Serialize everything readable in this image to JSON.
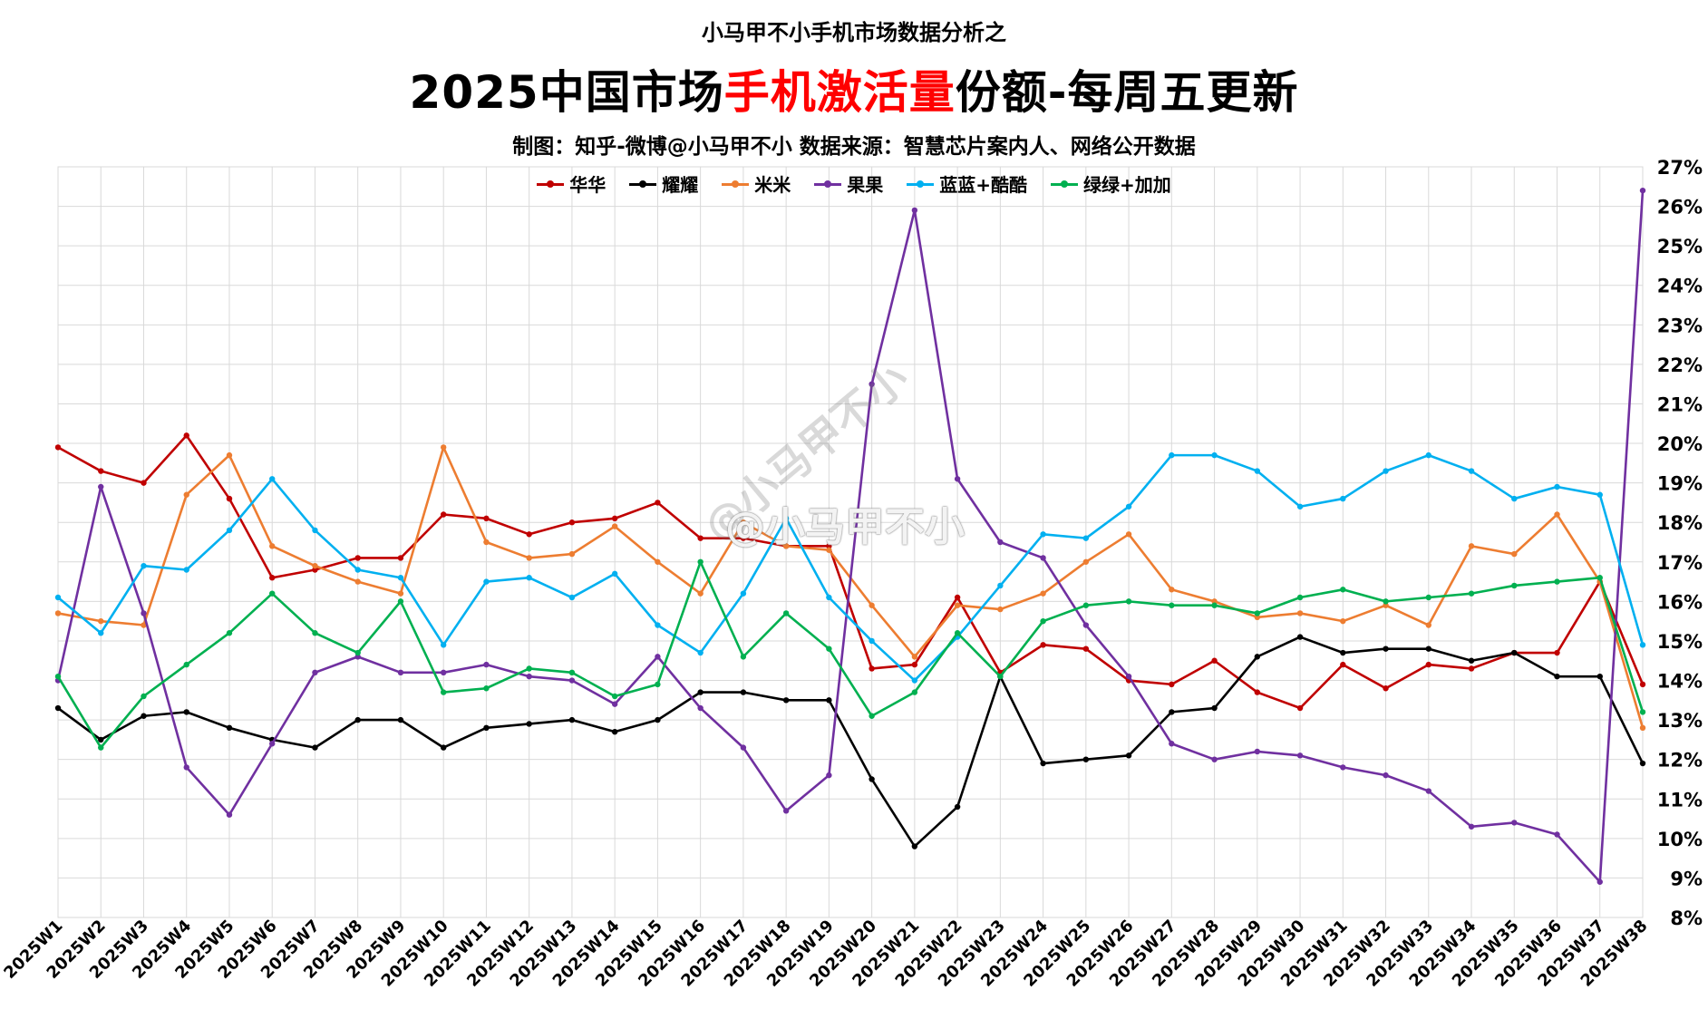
{
  "header": {
    "top_title": "小马甲不小手机市场数据分析之",
    "main_title_part1": "2025中国市场",
    "main_title_highlight": "手机激活量",
    "main_title_part2": "份额-每周五更新",
    "credit": "制图：知乎-微博@小马甲不小   数据来源：智慧芯片案内人、网络公开数据"
  },
  "watermark": "@小马甲不小",
  "watermark_overlay": "@小马甲不小",
  "chart_data": {
    "type": "line",
    "x": [
      "2025W1",
      "2025W2",
      "2025W3",
      "2025W4",
      "2025W5",
      "2025W6",
      "2025W7",
      "2025W8",
      "2025W9",
      "2025W10",
      "2025W11",
      "2025W12",
      "2025W13",
      "2025W14",
      "2025W15",
      "2025W16",
      "2025W17",
      "2025W18",
      "2025W19",
      "2025W20",
      "2025W21",
      "2025W22",
      "2025W23",
      "2025W24",
      "2025W25",
      "2025W26",
      "2025W27",
      "2025W28",
      "2025W29",
      "2025W30",
      "2025W31",
      "2025W32",
      "2025W33",
      "2025W34",
      "2025W35",
      "2025W36",
      "2025W37",
      "2025W38"
    ],
    "y_ticks": [
      "8%",
      "9%",
      "10%",
      "11%",
      "12%",
      "13%",
      "14%",
      "15%",
      "16%",
      "17%",
      "18%",
      "19%",
      "20%",
      "21%",
      "22%",
      "23%",
      "24%",
      "25%",
      "26%",
      "27%"
    ],
    "ylim": [
      8,
      27
    ],
    "y_axis_position": "right",
    "grid": true,
    "legend_position": "top",
    "series": [
      {
        "name": "华华",
        "color": "#c00000",
        "values": [
          19.9,
          19.3,
          19.0,
          20.2,
          18.6,
          16.6,
          16.8,
          17.1,
          17.1,
          18.2,
          18.1,
          17.7,
          18.0,
          18.1,
          18.5,
          17.6,
          17.6,
          17.4,
          17.4,
          14.3,
          14.4,
          16.1,
          14.2,
          14.9,
          14.8,
          14.0,
          13.9,
          14.5,
          13.7,
          13.3,
          14.4,
          13.8,
          14.4,
          14.3,
          14.7,
          14.7,
          16.5,
          13.9
        ]
      },
      {
        "name": "耀耀",
        "color": "#000000",
        "values": [
          13.3,
          12.5,
          13.1,
          13.2,
          12.8,
          12.5,
          12.3,
          13.0,
          13.0,
          12.3,
          12.8,
          12.9,
          13.0,
          12.7,
          13.0,
          13.7,
          13.7,
          13.5,
          13.5,
          11.5,
          9.8,
          10.8,
          14.1,
          11.9,
          12.0,
          12.1,
          13.2,
          13.3,
          14.6,
          15.1,
          14.7,
          14.8,
          14.8,
          14.5,
          14.7,
          14.1,
          14.1,
          11.9
        ]
      },
      {
        "name": "米米",
        "color": "#ed7d31",
        "values": [
          15.7,
          15.5,
          15.4,
          18.7,
          19.7,
          17.4,
          16.9,
          16.5,
          16.2,
          19.9,
          17.5,
          17.1,
          17.2,
          17.9,
          17.0,
          16.2,
          18.0,
          17.4,
          17.3,
          15.9,
          14.6,
          15.9,
          15.8,
          16.2,
          17.0,
          17.7,
          16.3,
          16.0,
          15.6,
          15.7,
          15.5,
          15.9,
          15.4,
          17.4,
          17.2,
          18.2,
          16.5,
          12.8
        ]
      },
      {
        "name": "果果",
        "color": "#7030a0",
        "values": [
          14.0,
          18.9,
          15.7,
          11.8,
          10.6,
          12.4,
          14.2,
          14.6,
          14.2,
          14.2,
          14.4,
          14.1,
          14.0,
          13.4,
          14.6,
          13.3,
          12.3,
          10.7,
          11.6,
          21.5,
          25.9,
          19.1,
          17.5,
          17.1,
          15.4,
          14.1,
          12.4,
          12.0,
          12.2,
          12.1,
          11.8,
          11.6,
          11.2,
          10.3,
          10.4,
          10.1,
          8.9,
          26.4
        ]
      },
      {
        "name": "蓝蓝+酷酷",
        "color": "#00b0f0",
        "values": [
          16.1,
          15.2,
          16.9,
          16.8,
          17.8,
          19.1,
          17.8,
          16.8,
          16.6,
          14.9,
          16.5,
          16.6,
          16.1,
          16.7,
          15.4,
          14.7,
          16.2,
          18.1,
          16.1,
          15.0,
          14.0,
          15.1,
          16.4,
          17.7,
          17.6,
          18.4,
          19.7,
          19.7,
          19.3,
          18.4,
          18.6,
          19.3,
          19.7,
          19.3,
          18.6,
          18.9,
          18.7,
          14.9
        ]
      },
      {
        "name": "绿绿+加加",
        "color": "#00b050",
        "values": [
          14.1,
          12.3,
          13.6,
          14.4,
          15.2,
          16.2,
          15.2,
          14.7,
          16.0,
          13.7,
          13.8,
          14.3,
          14.2,
          13.6,
          13.9,
          17.0,
          14.6,
          15.7,
          14.8,
          13.1,
          13.7,
          15.2,
          14.1,
          15.5,
          15.9,
          16.0,
          15.9,
          15.9,
          15.7,
          16.1,
          16.3,
          16.0,
          16.1,
          16.2,
          16.4,
          16.5,
          16.6,
          13.2
        ]
      }
    ]
  }
}
